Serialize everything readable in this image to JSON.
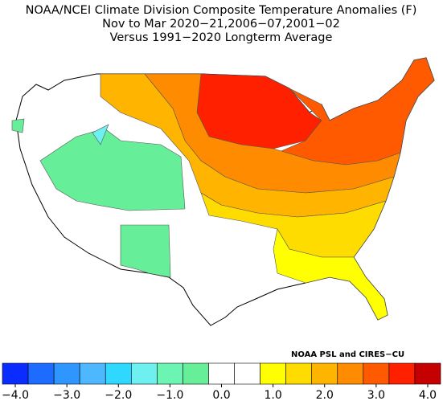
{
  "title_lines": [
    "NOAA/NCEI Climate Division Composite Temperature Anomalies (F)",
    "Nov to Mar  2020−21,2006−07,2001−02",
    "Versus 1991−2020 Longterm Average"
  ],
  "credit": "NOAA PSL and CIRES−CU",
  "legend": {
    "colors": [
      "#0a2cff",
      "#1e6cff",
      "#2f96ff",
      "#4db8ff",
      "#2fd8ff",
      "#6ef0f0",
      "#6cf5b2",
      "#66ee99",
      "#ffffff",
      "#ffffff",
      "#ffff00",
      "#ffdc00",
      "#ffb400",
      "#ff8c00",
      "#ff5a00",
      "#ff2000",
      "#c40000"
    ],
    "ticks": [
      {
        "value": -4,
        "label": "−4.0"
      },
      {
        "value": -3,
        "label": "−3.0"
      },
      {
        "value": -2,
        "label": "−2.0"
      },
      {
        "value": -1,
        "label": "−1.0"
      },
      {
        "value": 0,
        "label": "0.0"
      },
      {
        "value": 1,
        "label": "1.0"
      },
      {
        "value": 2,
        "label": "2.0"
      },
      {
        "value": 3,
        "label": "3.0"
      },
      {
        "value": 4,
        "label": "4.0"
      }
    ]
  }
}
